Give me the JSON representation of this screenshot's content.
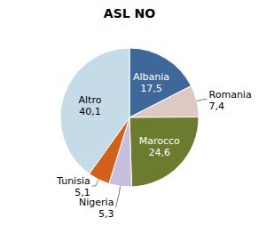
{
  "chart_data": {
    "type": "pie",
    "title": "ASL NO",
    "categories": [
      "Albania",
      "Romania",
      "Marocco",
      "Nigeria",
      "Tunisia",
      "Altro"
    ],
    "values": [
      17.5,
      7.4,
      24.6,
      5.3,
      5.1,
      40.1
    ],
    "value_labels": [
      "17,5",
      "7,4",
      "24,6",
      "5,3",
      "5,1",
      "40,1"
    ],
    "colors": [
      "#3d6899",
      "#ddc8c4",
      "#6b7c2e",
      "#c8bedd",
      "#d2601a",
      "#c5dce8"
    ],
    "data_labels": true
  }
}
